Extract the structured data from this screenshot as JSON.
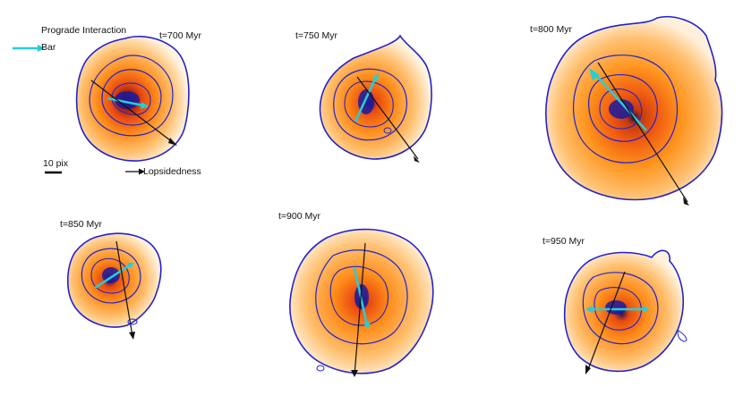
{
  "legend": {
    "title": "Prograde Interaction",
    "bar_label": "Bar",
    "lopsidedness_label": "Lopsidedness",
    "scale_label": "10 pix"
  },
  "panels": [
    {
      "time": "t=700 Myr"
    },
    {
      "time": "t=750 Myr"
    },
    {
      "time": "t=800 Myr"
    },
    {
      "time": "t=850 Myr"
    },
    {
      "time": "t=900 Myr"
    },
    {
      "time": "t=950 Myr"
    }
  ],
  "colors": {
    "contour": "#2222cc",
    "bar": "#22d0d8",
    "lopsided": "#111111",
    "core": "#1a1aa0",
    "inner": "#e84a10",
    "mid": "#ff8c1a",
    "outer": "#ffc070"
  }
}
